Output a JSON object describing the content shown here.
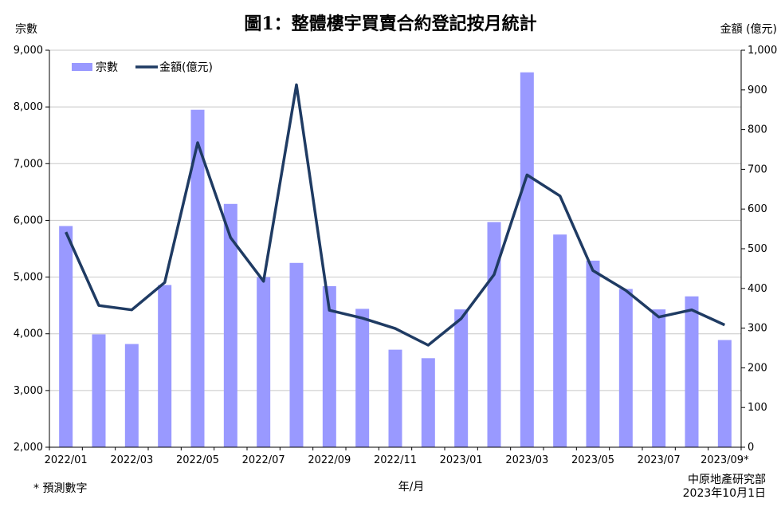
{
  "chart_data": {
    "type": "bar",
    "title": "圖1：整體樓宇買賣合約登記按月統計",
    "xlabel": "年/月",
    "ylabel_left": "宗數",
    "ylabel_right": "金額 (億元)",
    "footnote": "* 預測數字",
    "source_line1": "中原地產研究部",
    "source_line2": "2023年10月1日",
    "categories": [
      "2022/01",
      "2022/02",
      "2022/03",
      "2022/04",
      "2022/05",
      "2022/06",
      "2022/07",
      "2022/08",
      "2022/09",
      "2022/10",
      "2022/11",
      "2022/12",
      "2023/01",
      "2023/02",
      "2023/03",
      "2023/04",
      "2023/05",
      "2023/06",
      "2023/07",
      "2023/08",
      "2023/09*"
    ],
    "tick_labels": [
      "2022/01",
      "2022/03",
      "2022/05",
      "2022/07",
      "2022/09",
      "2022/11",
      "2023/01",
      "2023/03",
      "2023/05",
      "2023/07",
      "2023/09*"
    ],
    "ylim_left": [
      2000,
      9000
    ],
    "yticks_left": [
      "2,000",
      "3,000",
      "4,000",
      "5,000",
      "6,000",
      "7,000",
      "8,000",
      "9,000"
    ],
    "ylim_right": [
      0,
      1000
    ],
    "yticks_right": [
      "0",
      "100",
      "200",
      "300",
      "400",
      "500",
      "600",
      "700",
      "800",
      "900",
      "1,000"
    ],
    "legend_position": "top-left",
    "series": [
      {
        "name": "宗數",
        "type": "bar",
        "axis": "left",
        "color": "#9999ff",
        "values": [
          5900,
          3990,
          3820,
          4860,
          7950,
          6290,
          5000,
          5250,
          4840,
          4440,
          3720,
          3570,
          4430,
          5970,
          8610,
          5750,
          5290,
          4790,
          4430,
          4660,
          3890
        ]
      },
      {
        "name": "金額(億元)",
        "type": "line",
        "axis": "right",
        "color": "#1f3b63",
        "values": [
          542,
          357,
          346,
          415,
          767,
          528,
          418,
          913,
          345,
          325,
          299,
          257,
          324,
          435,
          686,
          633,
          445,
          395,
          328,
          346,
          308
        ]
      }
    ]
  }
}
